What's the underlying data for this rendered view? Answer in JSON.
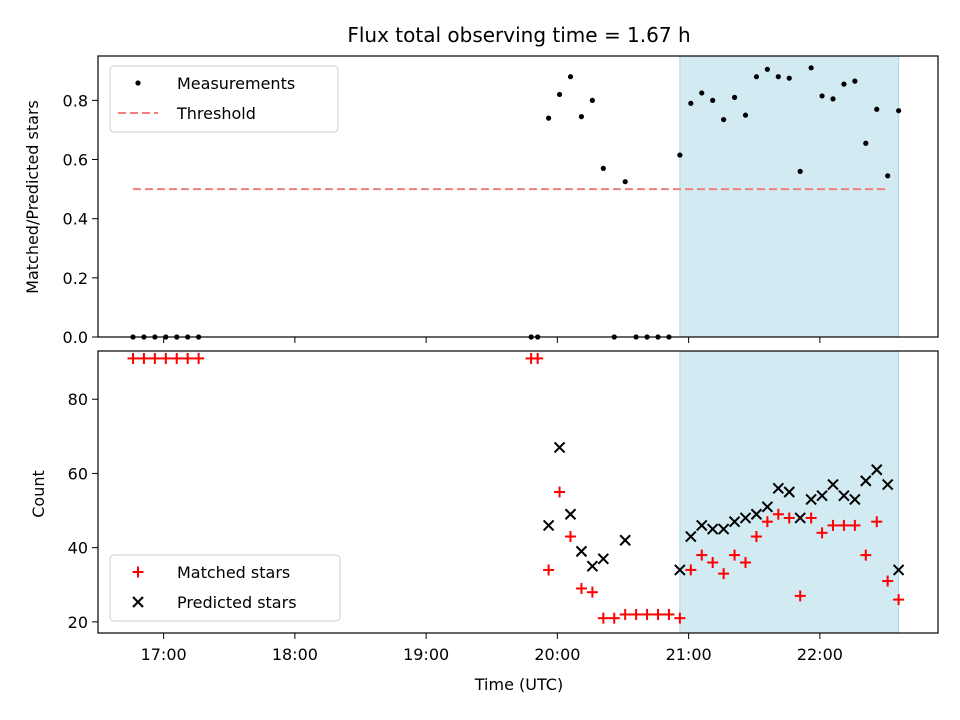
{
  "chart_data": {
    "title": "Flux total observing time = 1.67 h",
    "xlabel": "Time (UTC)",
    "x_unit": "hours UTC",
    "xlim": [
      "16:30",
      "22:54"
    ],
    "x_ticks": [
      {
        "value": 17,
        "label": "17:00"
      },
      {
        "value": 18,
        "label": "18:00"
      },
      {
        "value": 19,
        "label": "19:00"
      },
      {
        "value": 20,
        "label": "20:00"
      },
      {
        "value": 21,
        "label": "21:00"
      },
      {
        "value": 22,
        "label": "22:00"
      }
    ],
    "highlight_span": {
      "x0": "20:56",
      "x1": "22:36",
      "color": "#add8e6"
    },
    "panels": [
      {
        "type": "scatter",
        "ylabel": "Matched/Predicted stars",
        "ylim": [
          0,
          0.95
        ],
        "y_ticks": [
          {
            "value": 0,
            "label": "0.0"
          },
          {
            "value": 0.2,
            "label": "0.2"
          },
          {
            "value": 0.4,
            "label": "0.4"
          },
          {
            "value": 0.6,
            "label": "0.6"
          },
          {
            "value": 0.8,
            "label": "0.8"
          }
        ],
        "legend_position": "top-left",
        "series": [
          {
            "name": "Measurements",
            "marker": "dot",
            "color": "#000000",
            "x": [
              "16:46",
              "16:51",
              "16:56",
              "17:01",
              "17:06",
              "17:11",
              "17:16",
              "19:48",
              "19:51",
              "19:56",
              "20:01",
              "20:06",
              "20:11",
              "20:16",
              "20:21",
              "20:26",
              "20:31",
              "20:36",
              "20:41",
              "20:46",
              "20:51",
              "20:56",
              "21:01",
              "21:06",
              "21:11",
              "21:16",
              "21:21",
              "21:26",
              "21:31",
              "21:36",
              "21:41",
              "21:46",
              "21:51",
              "21:56",
              "22:01",
              "22:06",
              "22:11",
              "22:16",
              "22:21",
              "22:26",
              "22:31",
              "22:36"
            ],
            "y": [
              0,
              0,
              0,
              0,
              0,
              0,
              0,
              0,
              0,
              0.74,
              0.82,
              0.88,
              0.745,
              0.8,
              0.57,
              0,
              0.525,
              0,
              0,
              0,
              0,
              0.615,
              0.79,
              0.825,
              0.8,
              0.735,
              0.81,
              0.75,
              0.88,
              0.905,
              0.88,
              0.875,
              0.56,
              0.91,
              0.815,
              0.805,
              0.855,
              0.865,
              0.655,
              0.77,
              0.545,
              0.765
            ]
          },
          {
            "name": "Threshold",
            "type": "line",
            "style": "dashed",
            "color": "#f08080",
            "x": [
              "16:46",
              "22:31"
            ],
            "y": [
              0.5,
              0.5
            ]
          }
        ]
      },
      {
        "type": "scatter",
        "ylabel": "Count",
        "ylim": [
          17,
          93
        ],
        "y_ticks": [
          {
            "value": 20,
            "label": "20"
          },
          {
            "value": 40,
            "label": "40"
          },
          {
            "value": 60,
            "label": "60"
          },
          {
            "value": 80,
            "label": "80"
          }
        ],
        "legend_position": "bottom-left",
        "series": [
          {
            "name": "Matched stars",
            "marker": "plus",
            "color": "#ff0000",
            "x": [
              "16:46",
              "16:51",
              "16:56",
              "17:01",
              "17:06",
              "17:11",
              "17:16",
              "19:48",
              "19:51",
              "19:56",
              "20:01",
              "20:06",
              "20:11",
              "20:16",
              "20:21",
              "20:26",
              "20:31",
              "20:36",
              "20:41",
              "20:46",
              "20:51",
              "20:56",
              "21:01",
              "21:06",
              "21:11",
              "21:16",
              "21:21",
              "21:26",
              "21:31",
              "21:36",
              "21:41",
              "21:46",
              "21:51",
              "21:56",
              "22:01",
              "22:06",
              "22:11",
              "22:16",
              "22:21",
              "22:26",
              "22:31",
              "22:36"
            ],
            "y": [
              91,
              91,
              91,
              91,
              91,
              91,
              91,
              91,
              91,
              34,
              55,
              43,
              29,
              28,
              21,
              21,
              22,
              22,
              22,
              22,
              22,
              21,
              34,
              38,
              36,
              33,
              38,
              36,
              43,
              47,
              49,
              48,
              27,
              48,
              44,
              46,
              46,
              46,
              38,
              47,
              31,
              26
            ]
          },
          {
            "name": "Predicted stars",
            "marker": "x",
            "color": "#000000",
            "x": [
              "19:56",
              "20:01",
              "20:06",
              "20:11",
              "20:16",
              "20:21",
              "20:31",
              "20:56",
              "21:01",
              "21:06",
              "21:11",
              "21:16",
              "21:21",
              "21:26",
              "21:31",
              "21:36",
              "21:41",
              "21:46",
              "21:51",
              "21:56",
              "22:01",
              "22:06",
              "22:11",
              "22:16",
              "22:21",
              "22:26",
              "22:31",
              "22:36"
            ],
            "y": [
              46,
              67,
              49,
              39,
              35,
              37,
              42,
              34,
              43,
              46,
              45,
              45,
              47,
              48,
              49,
              51,
              56,
              55,
              48,
              53,
              54,
              57,
              54,
              53,
              58,
              61,
              57,
              34
            ]
          }
        ]
      }
    ]
  }
}
